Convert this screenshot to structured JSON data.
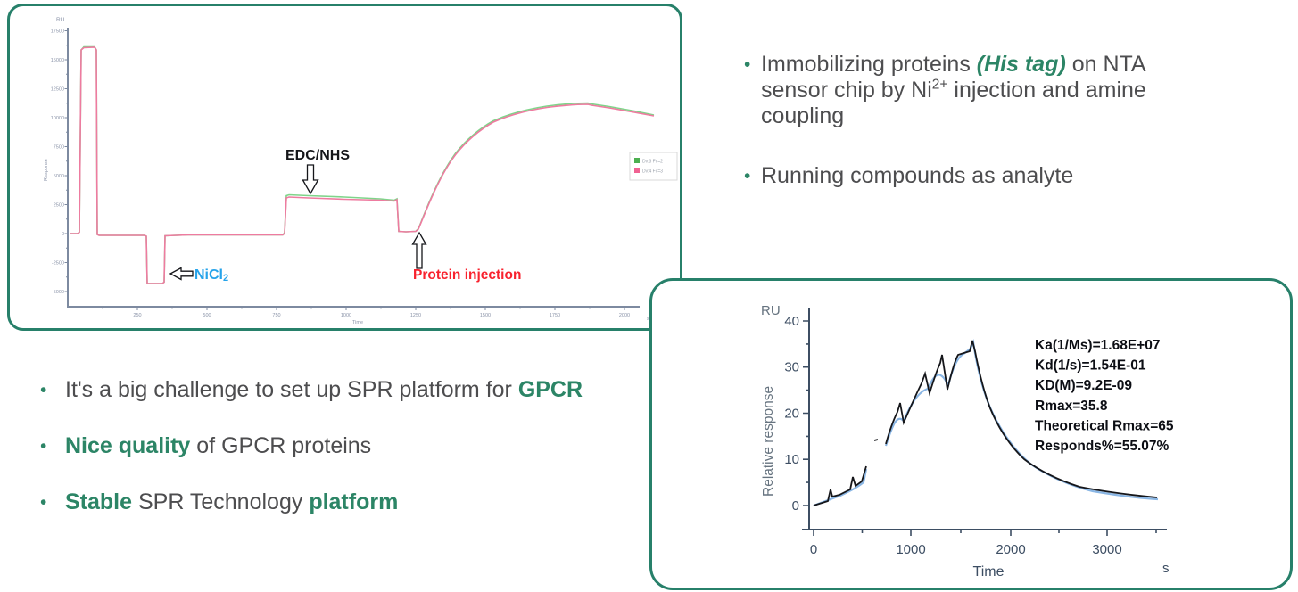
{
  "colors": {
    "accent_green": "#2c8566",
    "panel_border": "#27806a",
    "body_text": "#4d4d4f",
    "red_annotation": "#f8222e",
    "blue_annotation": "#25a3ea",
    "pink_curve": "#ee7ba0",
    "green_curve": "#7fd48a",
    "fit_blue": "#8ab6e4",
    "data_black": "#15161a"
  },
  "ui": {
    "dot": "•"
  },
  "right_bullets": {
    "items": [
      {
        "lines": [
          [
            {
              "t": "Immobilizing proteins "
            },
            {
              "t": "(His tag)",
              "s": "accent-i"
            },
            {
              "t": " on NTA"
            }
          ],
          [
            {
              "t": "sensor chip by Ni"
            },
            {
              "t": "2+",
              "s": "sup"
            },
            {
              "t": " injection and amine"
            }
          ],
          [
            {
              "t": "coupling"
            }
          ]
        ]
      },
      {
        "lines": [
          [
            {
              "t": "Running compounds as analyte"
            }
          ]
        ]
      }
    ]
  },
  "left_bullets": {
    "items": [
      {
        "lines": [
          [
            {
              "t": "It's a big challenge to set up SPR platform for "
            },
            {
              "t": "GPCR",
              "s": "accent"
            }
          ]
        ]
      },
      {
        "lines": [
          [
            {
              "t": "Nice quality",
              "s": "accent"
            },
            {
              "t": " of GPCR proteins"
            }
          ]
        ]
      },
      {
        "lines": [
          [
            {
              "t": "Stable",
              "s": "accent"
            },
            {
              "t": " SPR Technology "
            },
            {
              "t": "platform",
              "s": "accent"
            }
          ]
        ]
      }
    ]
  },
  "panel1": {
    "y_unit": "RU",
    "y_title": "Response",
    "x_title": "Time",
    "x_unit": "s",
    "y_ticks": [
      "17500",
      "15000",
      "12500",
      "10000",
      "7500",
      "5000",
      "2500",
      "0",
      "-2500",
      "-5000"
    ],
    "x_ticks": [
      "250",
      "500",
      "750",
      "1000",
      "1250",
      "1500",
      "1750",
      "2000"
    ],
    "legend": [
      {
        "label": "Dv:3 Fc=2"
      },
      {
        "label": "Dv:4 Fc=3"
      }
    ],
    "ann_edc": "EDC/NHS",
    "ann_nicl": "NiCl",
    "ann_nicl_sub": "2",
    "ann_protein": "Protein injection"
  },
  "panel2": {
    "y_unit": "RU",
    "y_label": "Relative response",
    "x_label": "Time",
    "x_unit": "s",
    "y_ticks": [
      "40",
      "30",
      "20",
      "10",
      "0"
    ],
    "x_ticks": [
      "0",
      "1000",
      "2000",
      "3000"
    ],
    "kinetics": [
      "Ka(1/Ms)=1.68E+07",
      "Kd(1/s)=1.54E-01",
      "KD(M)=9.2E-09",
      "Rmax=35.8",
      "Theoretical Rmax=65",
      "Responds%=55.07%"
    ]
  },
  "chart_data": [
    {
      "type": "line",
      "xlabel": "Time",
      "x_unit": "s",
      "ylabel": "Response",
      "y_unit": "RU",
      "xlim": [
        0,
        2100
      ],
      "ylim": [
        -5000,
        17500
      ],
      "x_ticks": [
        250,
        500,
        750,
        1000,
        1250,
        1500,
        1750,
        2000
      ],
      "y_ticks": [
        17500,
        15000,
        12500,
        10000,
        7500,
        5000,
        2500,
        0,
        -2500,
        -5000
      ],
      "grid": false,
      "legend_position": "right",
      "annotations": [
        "EDC/NHS",
        "NiCl2",
        "Protein injection"
      ],
      "series": [
        {
          "name": "Dv:3 Fc=2",
          "color": "#7fd48a",
          "note": "nearly identical to pink series; slightly higher during EDC/NHS plateau (~3350 RU) and at peak"
        },
        {
          "name": "Dv:4 Fc=3",
          "color": "#ee7ba0",
          "points": [
            [
              0,
              0
            ],
            [
              30,
              0
            ],
            [
              40,
              16100
            ],
            [
              90,
              16300
            ],
            [
              100,
              16300
            ],
            [
              105,
              -100
            ],
            [
              270,
              -100
            ],
            [
              280,
              -4350
            ],
            [
              345,
              -4350
            ],
            [
              350,
              -100
            ],
            [
              770,
              -100
            ],
            [
              780,
              3250
            ],
            [
              900,
              3200
            ],
            [
              1150,
              3100
            ],
            [
              1160,
              3050
            ],
            [
              1170,
              150
            ],
            [
              1250,
              150
            ],
            [
              1300,
              1800
            ],
            [
              1350,
              3900
            ],
            [
              1400,
              5600
            ],
            [
              1450,
              6900
            ],
            [
              1500,
              7900
            ],
            [
              1550,
              8700
            ],
            [
              1600,
              9300
            ],
            [
              1650,
              9800
            ],
            [
              1700,
              10200
            ],
            [
              1800,
              10700
            ],
            [
              1870,
              10900
            ],
            [
              1950,
              10750
            ],
            [
              2080,
              10400
            ]
          ]
        }
      ]
    },
    {
      "type": "line",
      "xlabel": "Time",
      "x_unit": "s",
      "ylabel": "Relative response",
      "y_unit": "RU",
      "xlim": [
        0,
        3600
      ],
      "ylim": [
        -3,
        40
      ],
      "x_ticks": [
        0,
        1000,
        2000,
        3000
      ],
      "y_ticks": [
        0,
        10,
        20,
        30,
        40
      ],
      "grid": false,
      "stats": {
        "Ka(1/Ms)": "1.68E+07",
        "Kd(1/s)": "1.54E-01",
        "KD(M)": "9.2E-09",
        "Rmax": "35.8",
        "Theoretical Rmax": "65",
        "Responds%": "55.07%"
      },
      "series": [
        {
          "name": "data",
          "color": "#15161a",
          "points": [
            [
              0,
              0
            ],
            [
              130,
              1.0
            ],
            [
              155,
              3.4
            ],
            [
              165,
              2.2
            ],
            [
              235,
              2.6
            ],
            [
              330,
              3.5
            ],
            [
              350,
              6.2
            ],
            [
              375,
              4.6
            ],
            [
              440,
              5.2
            ],
            [
              500,
              8.5
            ],
            [
              620,
              14.2
            ],
            [
              735,
              13.3
            ],
            [
              810,
              19.0
            ],
            [
              855,
              22.2
            ],
            [
              885,
              18.0
            ],
            [
              1060,
              26.5
            ],
            [
              1090,
              28.7
            ],
            [
              1135,
              24.3
            ],
            [
              1230,
              30.9
            ],
            [
              1250,
              32.6
            ],
            [
              1300,
              25.1
            ],
            [
              1390,
              32.7
            ],
            [
              1565,
              33.4
            ],
            [
              1610,
              35.7
            ],
            [
              1640,
              33.4
            ],
            [
              1700,
              28.4
            ],
            [
              1800,
              21.0
            ],
            [
              1900,
              15.2
            ],
            [
              2000,
              11.4
            ],
            [
              2100,
              9.0
            ],
            [
              2250,
              6.6
            ],
            [
              2450,
              4.9
            ],
            [
              2700,
              3.7
            ],
            [
              3000,
              2.9
            ],
            [
              3250,
              2.4
            ],
            [
              3480,
              2.0
            ]
          ]
        },
        {
          "name": "fit",
          "color": "#8ab6e4",
          "note": "smooth fitted curve tracking the data without injection spikes"
        }
      ]
    }
  ]
}
